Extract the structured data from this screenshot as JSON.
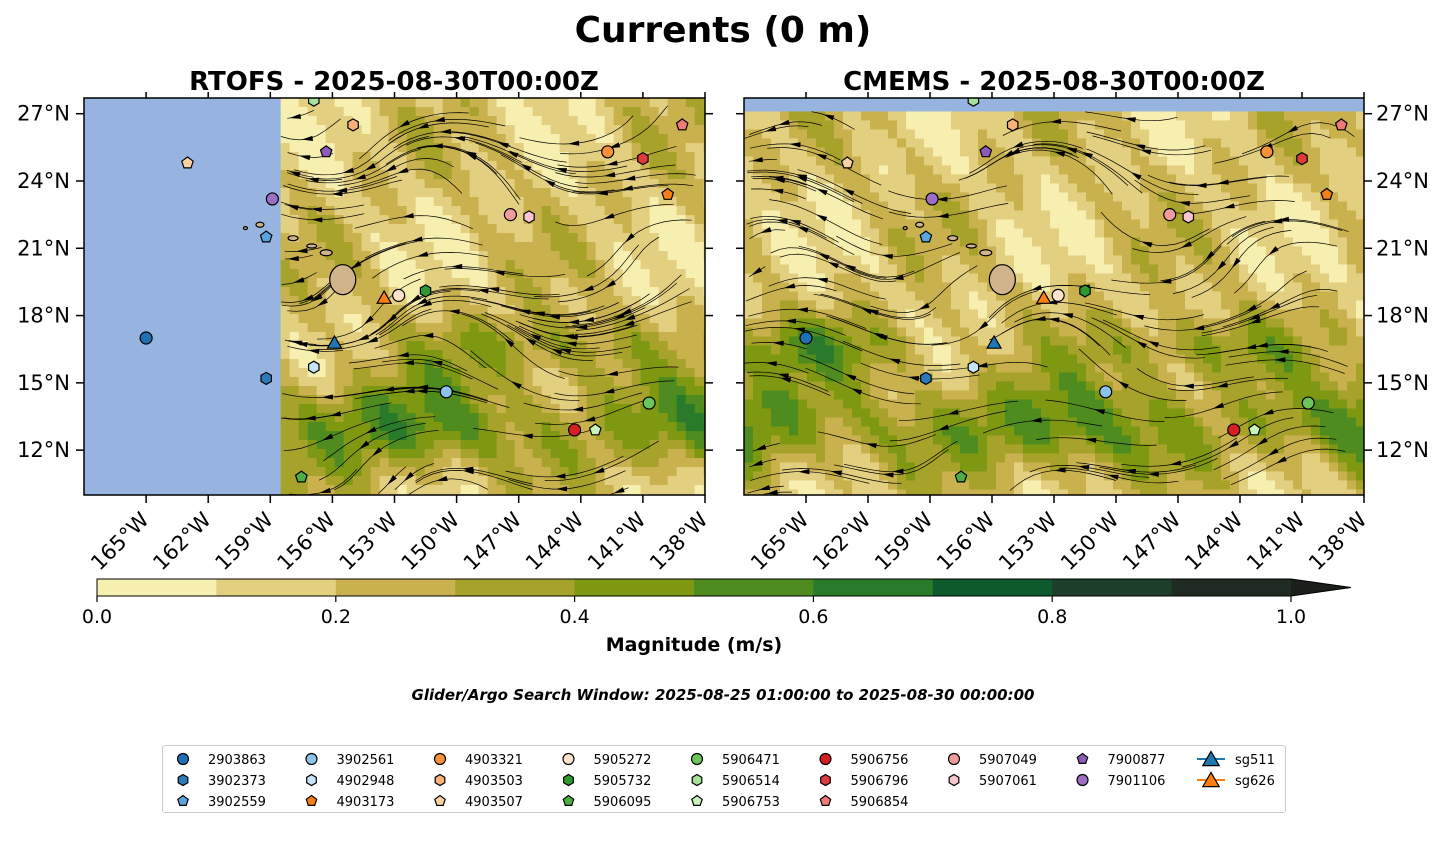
{
  "suptitle": "Currents (0 m)",
  "chart_data": [
    {
      "type": "contour-map",
      "title": "RTOFS - 2025-08-30T00:00Z",
      "model": "RTOFS",
      "xlim": [
        -168,
        -138
      ],
      "ylim": [
        10,
        27.7
      ],
      "xticks": [
        -165,
        -162,
        -159,
        -156,
        -153,
        -150,
        -147,
        -144,
        -141,
        -138
      ],
      "xtick_labels": [
        "165°W",
        "162°W",
        "159°W",
        "156°W",
        "153°W",
        "150°W",
        "147°W",
        "144°W",
        "141°W",
        "138°W"
      ],
      "yticks": [
        12,
        15,
        18,
        21,
        24,
        27
      ],
      "ytick_labels": [
        "12°N",
        "15°N",
        "18°N",
        "21°N",
        "24°N",
        "27°N"
      ],
      "data_coverage_west_limit": -158.5,
      "background": "#97b4e0"
    },
    {
      "type": "contour-map",
      "title": "CMEMS - 2025-08-30T00:00Z",
      "model": "CMEMS",
      "xlim": [
        -168,
        -138
      ],
      "ylim": [
        10,
        27.7
      ],
      "xticks": [
        -165,
        -162,
        -159,
        -156,
        -153,
        -150,
        -147,
        -144,
        -141,
        -138
      ],
      "xtick_labels": [
        "165°W",
        "162°W",
        "159°W",
        "156°W",
        "153°W",
        "150°W",
        "147°W",
        "144°W",
        "141°W",
        "138°W"
      ],
      "yticks": [
        12,
        15,
        18,
        21,
        24,
        27
      ],
      "ytick_labels": [
        "12°N",
        "15°N",
        "18°N",
        "21°N",
        "24°N",
        "27°N"
      ],
      "data_coverage_north_limit": 27.1,
      "background": "#97b4e0"
    }
  ],
  "colorbar": {
    "label": "Magnitude (m/s)",
    "levels": [
      0.0,
      0.1,
      0.2,
      0.3,
      0.4,
      0.5,
      0.6,
      0.7,
      0.8,
      0.9,
      1.0
    ],
    "colors": [
      "#f7efb0",
      "#e3cf80",
      "#c9b14e",
      "#a6a22a",
      "#7f9812",
      "#4e8c20",
      "#2a7a2c",
      "#0f5a2c",
      "#1d3f2a",
      "#1e2a22"
    ],
    "ticks": [
      0.0,
      0.2,
      0.4,
      0.6,
      0.8,
      1.0
    ],
    "tick_labels": [
      "0.0",
      "0.2",
      "0.4",
      "0.6",
      "0.8",
      "1.0"
    ],
    "extend": "max"
  },
  "subtitle": "Glider/Argo Search Window: 2025-08-25 01:00:00 to 2025-08-30 00:00:00",
  "legend": {
    "columns": [
      [
        {
          "id": "2903863",
          "marker": "circle",
          "color": "#1f6fb4"
        },
        {
          "id": "3902373",
          "marker": "hexagon",
          "color": "#2b7bba"
        },
        {
          "id": "3902559",
          "marker": "pentagon",
          "color": "#5aa5de"
        }
      ],
      [
        {
          "id": "3902561",
          "marker": "circle",
          "color": "#8cc3ea"
        },
        {
          "id": "4902948",
          "marker": "hexagon",
          "color": "#c5e4f7"
        },
        {
          "id": "4903173",
          "marker": "pentagon",
          "color": "#f57f17"
        }
      ],
      [
        {
          "id": "4903321",
          "marker": "circle",
          "color": "#f6913a"
        },
        {
          "id": "4903503",
          "marker": "hexagon",
          "color": "#f7b27a"
        },
        {
          "id": "4903507",
          "marker": "pentagon",
          "color": "#fcd2a3"
        }
      ],
      [
        {
          "id": "5905272",
          "marker": "circle",
          "color": "#fde3c9"
        },
        {
          "id": "5905732",
          "marker": "hexagon",
          "color": "#2e9a2e"
        },
        {
          "id": "5906095",
          "marker": "pentagon",
          "color": "#4caf43"
        }
      ],
      [
        {
          "id": "5906471",
          "marker": "circle",
          "color": "#6cc55a"
        },
        {
          "id": "5906514",
          "marker": "hexagon",
          "color": "#a8e29a"
        },
        {
          "id": "5906753",
          "marker": "pentagon",
          "color": "#c8f3bd"
        }
      ],
      [
        {
          "id": "5906756",
          "marker": "circle",
          "color": "#d62020"
        },
        {
          "id": "5906796",
          "marker": "hexagon",
          "color": "#e03b3b"
        },
        {
          "id": "5906854",
          "marker": "pentagon",
          "color": "#f07a7a"
        }
      ],
      [
        {
          "id": "5907049",
          "marker": "circle",
          "color": "#f29b9b"
        },
        {
          "id": "5907061",
          "marker": "hexagon",
          "color": "#f8c6cf"
        }
      ],
      [
        {
          "id": "7900877",
          "marker": "pentagon",
          "color": "#8e5bb8"
        },
        {
          "id": "7901106",
          "marker": "circle",
          "color": "#9c6fc4"
        }
      ],
      [
        {
          "id": "sg511",
          "marker": "triangle",
          "color": "#1f77b4"
        },
        {
          "id": "sg626",
          "marker": "triangle",
          "color": "#ff7f0e"
        }
      ]
    ]
  },
  "platforms": [
    {
      "id": "2903863",
      "lon": -165.0,
      "lat": 17.0
    },
    {
      "id": "3902373",
      "lon": -159.2,
      "lat": 15.2
    },
    {
      "id": "3902559",
      "lon": -159.2,
      "lat": 21.5
    },
    {
      "id": "3902561",
      "lon": -150.5,
      "lat": 14.6
    },
    {
      "id": "4902948",
      "lon": -156.9,
      "lat": 15.7
    },
    {
      "id": "4903173",
      "lon": -139.8,
      "lat": 23.4
    },
    {
      "id": "4903321",
      "lon": -142.7,
      "lat": 25.3
    },
    {
      "id": "4903503",
      "lon": -155.0,
      "lat": 26.5
    },
    {
      "id": "4903507",
      "lon": -163.0,
      "lat": 24.8
    },
    {
      "id": "5905272",
      "lon": -152.8,
      "lat": 18.9
    },
    {
      "id": "5905732",
      "lon": -151.5,
      "lat": 19.1
    },
    {
      "id": "5906095",
      "lon": -157.5,
      "lat": 10.8
    },
    {
      "id": "5906471",
      "lon": -140.7,
      "lat": 14.1
    },
    {
      "id": "5906514",
      "lon": -156.9,
      "lat": 27.6
    },
    {
      "id": "5906753",
      "lon": -143.3,
      "lat": 12.9
    },
    {
      "id": "5906756",
      "lon": -144.3,
      "lat": 12.9
    },
    {
      "id": "5906796",
      "lon": -141.0,
      "lat": 25.0
    },
    {
      "id": "5906854",
      "lon": -139.1,
      "lat": 26.5
    },
    {
      "id": "5907049",
      "lon": -147.4,
      "lat": 22.5
    },
    {
      "id": "5907061",
      "lon": -146.5,
      "lat": 22.4
    },
    {
      "id": "7900877",
      "lon": -156.3,
      "lat": 25.3
    },
    {
      "id": "7901106",
      "lon": -158.9,
      "lat": 23.2
    },
    {
      "id": "sg511",
      "lon": -155.9,
      "lat": 16.8
    },
    {
      "id": "sg626",
      "lon": -153.5,
      "lat": 18.8
    }
  ]
}
